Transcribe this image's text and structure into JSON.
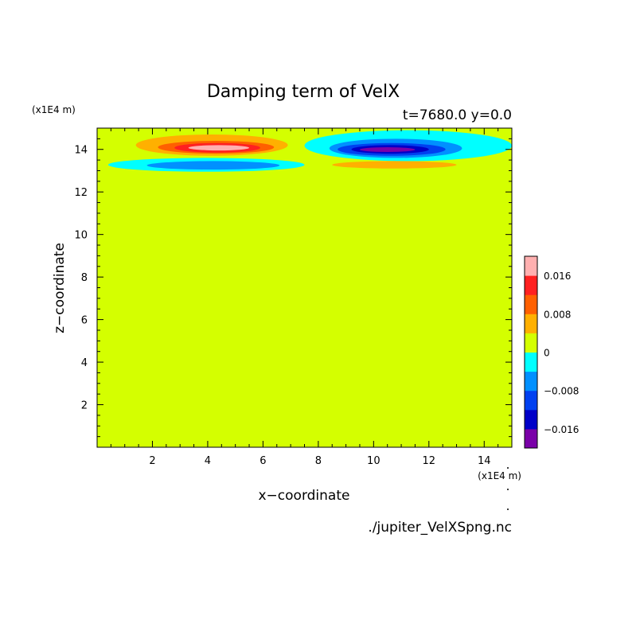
{
  "chart_data": {
    "type": "heatmap",
    "title": "Damping term of VelX",
    "subtitle": "t=7680.0 y=0.0",
    "xlabel": "x−coordinate",
    "ylabel": "z−coordinate",
    "x_unit": "(x1E4 m)",
    "y_unit": "(x1E4 m)",
    "xlim": [
      0,
      15
    ],
    "ylim": [
      0,
      15
    ],
    "x_ticks": [
      2,
      4,
      6,
      8,
      10,
      12,
      14
    ],
    "y_ticks": [
      2,
      4,
      6,
      8,
      10,
      12,
      14
    ],
    "x_tick_labels": [
      "2",
      "4",
      "6",
      "8",
      "10",
      "12",
      "14"
    ],
    "y_tick_labels": [
      "2",
      "4",
      "6",
      "8",
      "10",
      "12",
      "14"
    ],
    "source_file": "./jupiter_VelXSpng.nc",
    "background_level": 0,
    "colorbar": {
      "min": -0.02,
      "max": 0.02,
      "step": 0.004,
      "colors": [
        "#7a00a8",
        "#0000c8",
        "#0040f0",
        "#0090ff",
        "#00ffff",
        "#d4ff00",
        "#ffb000",
        "#ff6000",
        "#ff2020",
        "#ffb0b0"
      ],
      "tick_values": [
        0.016,
        0.008,
        0,
        -0.008,
        -0.016
      ],
      "tick_labels": [
        "0.016",
        "0.008",
        "0",
        "−0.008",
        "−0.016"
      ]
    },
    "features": [
      {
        "x_range": [
          1.4,
          6.9
        ],
        "z_range": [
          13.7,
          14.7
        ],
        "value": 0.004
      },
      {
        "x_range": [
          2.2,
          6.4
        ],
        "z_range": [
          13.8,
          14.4
        ],
        "value": 0.008
      },
      {
        "x_range": [
          2.8,
          5.9
        ],
        "z_range": [
          13.85,
          14.3
        ],
        "value": 0.012
      },
      {
        "x_range": [
          3.3,
          5.5
        ],
        "z_range": [
          13.95,
          14.2
        ],
        "value": 0.018
      },
      {
        "x_range": [
          0.4,
          7.5
        ],
        "z_range": [
          12.95,
          13.6
        ],
        "value": -0.004
      },
      {
        "x_range": [
          1.8,
          6.6
        ],
        "z_range": [
          13.05,
          13.45
        ],
        "value": -0.008
      },
      {
        "x_range": [
          7.5,
          15.0
        ],
        "z_range": [
          13.45,
          14.9
        ],
        "value": -0.004
      },
      {
        "x_range": [
          8.4,
          13.2
        ],
        "z_range": [
          13.6,
          14.5
        ],
        "value": -0.008
      },
      {
        "x_range": [
          8.7,
          12.6
        ],
        "z_range": [
          13.7,
          14.3
        ],
        "value": -0.012
      },
      {
        "x_range": [
          9.2,
          12.0
        ],
        "z_range": [
          13.8,
          14.2
        ],
        "value": -0.016
      },
      {
        "x_range": [
          9.5,
          11.5
        ],
        "z_range": [
          13.88,
          14.1
        ],
        "value": -0.02
      },
      {
        "x_range": [
          8.5,
          13.0
        ],
        "z_range": [
          13.1,
          13.45
        ],
        "value": 0.004
      }
    ]
  }
}
